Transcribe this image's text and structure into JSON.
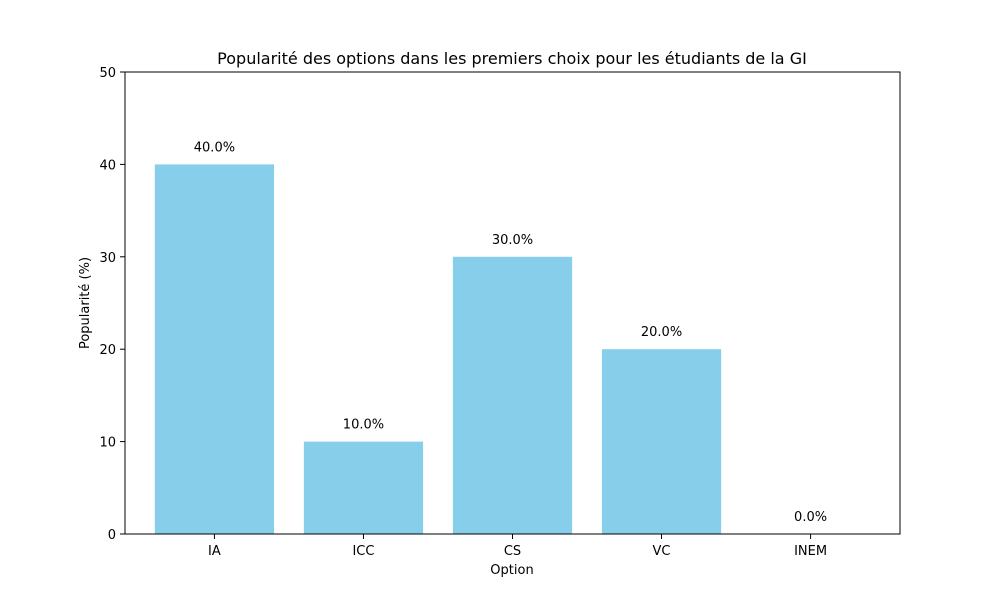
{
  "chart_data": {
    "type": "bar",
    "title": "Popularité des options dans les premiers choix pour les étudiants de la GI",
    "xlabel": "Option",
    "ylabel": "Popularité (%)",
    "categories": [
      "IA",
      "ICC",
      "CS",
      "VC",
      "INEM"
    ],
    "values": [
      40.0,
      10.0,
      30.0,
      20.0,
      0.0
    ],
    "data_labels": [
      "40.0%",
      "10.0%",
      "30.0%",
      "20.0%",
      "0.0%"
    ],
    "ylim": [
      0,
      50
    ],
    "yticks": [
      0,
      10,
      20,
      30,
      40,
      50
    ],
    "grid": false,
    "legend": "none",
    "bar_color": "#87ceeb"
  }
}
